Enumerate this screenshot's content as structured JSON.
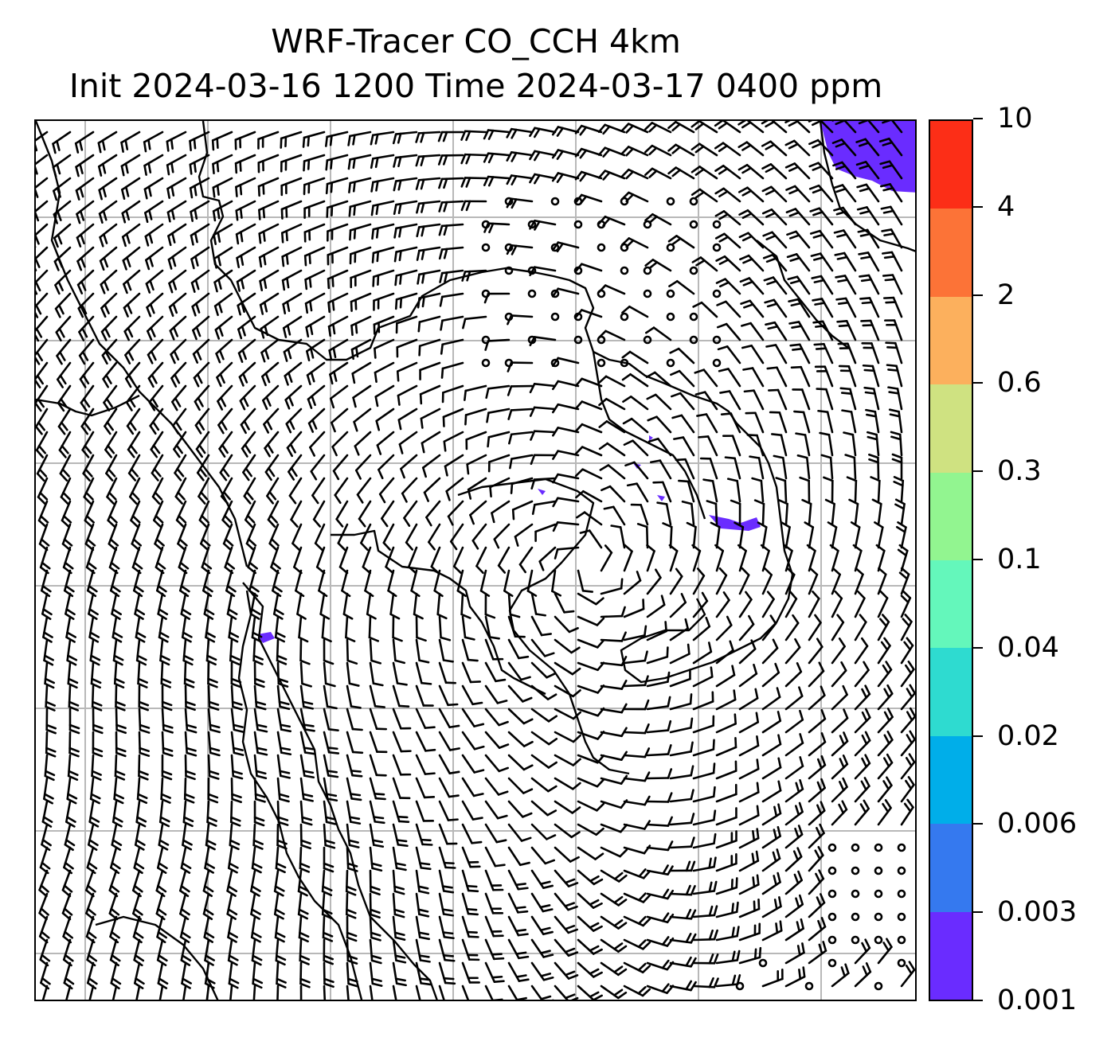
{
  "title": {
    "line1": "WRF-Tracer CO_CCH 4km",
    "line2": "Init 2024-03-16 1200 Time 2024-03-17 0400 ppm"
  },
  "colorbar": {
    "labels": [
      "0.001",
      "0.003",
      "0.006",
      "0.02",
      "0.04",
      "0.1",
      "0.3",
      "0.6",
      "2",
      "4",
      "10"
    ],
    "colors": [
      "#6a2cff",
      "#3579ef",
      "#00aee9",
      "#2edbd0",
      "#64f7bb",
      "#92f590",
      "#cfe281",
      "#fcb05d",
      "#fc7337",
      "#fc2e17"
    ]
  },
  "map": {
    "tracer_color": "#6a2cff",
    "gridline_color": "#b8b8b8",
    "barb_color": "#000000",
    "calm_marker": "circle",
    "wind_barbs": true,
    "coastlines": true
  }
}
